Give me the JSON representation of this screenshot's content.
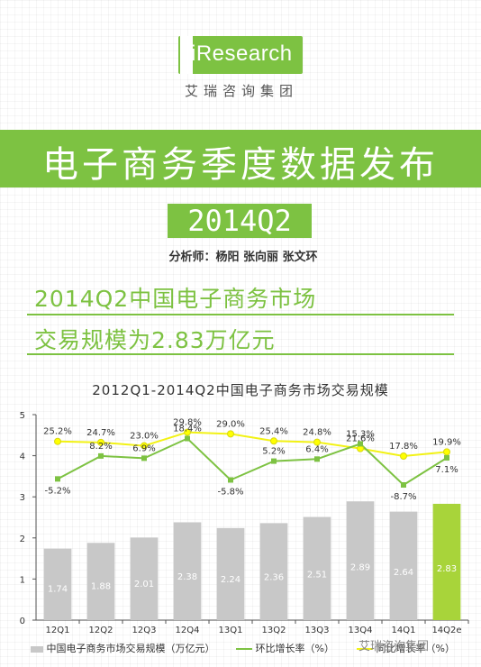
{
  "brand": {
    "logo": "iResearch",
    "sub": "艾瑞咨询集团"
  },
  "banner_title": "电子商务季度数据发布",
  "period": "2014Q2",
  "analysts": "分析师：杨阳 张向丽 张文环",
  "headline": {
    "line1": "2014Q2中国电子商务市场",
    "line2": "交易规模为2.83万亿元"
  },
  "watermark": "艾瑞咨询集团",
  "colors": {
    "accent": "#7dc242",
    "bar": "#c8c8c8",
    "bar_highlight": "#a8d43a",
    "yoy_line": "#f2f215",
    "yoy_marker": "#ffff00",
    "qoq_line": "#7dc242"
  },
  "chart_data": {
    "type": "bar",
    "title": "2012Q1-2014Q2中国电子商务市场交易规模",
    "categories": [
      "12Q1",
      "12Q2",
      "12Q3",
      "12Q4",
      "13Q1",
      "13Q2",
      "13Q3",
      "13Q4",
      "14Q1",
      "14Q2e"
    ],
    "ylim": [
      0,
      5
    ],
    "yticks": [
      "0",
      "1",
      "2",
      "3",
      "4",
      "5"
    ],
    "series": [
      {
        "name": "中国电子商务市场交易规模（万亿元）",
        "type": "bar",
        "values": [
          1.74,
          1.88,
          2.01,
          2.38,
          2.24,
          2.36,
          2.51,
          2.89,
          2.64,
          2.83
        ],
        "labels": [
          "1.74",
          "1.88",
          "2.01",
          "2.38",
          "2.24",
          "2.36",
          "2.51",
          "2.89",
          "2.64",
          "2.83"
        ]
      },
      {
        "name": "环比增长率（%）",
        "type": "line",
        "values": [
          -5.2,
          8.2,
          6.9,
          18.4,
          -5.8,
          5.2,
          6.4,
          15.3,
          -8.7,
          7.1
        ],
        "labels": [
          "-5.2%",
          "8.2%",
          "6.9%",
          "18.4%",
          "-5.8%",
          "5.2%",
          "6.4%",
          "15.3%",
          "-8.7%",
          "7.1%"
        ]
      },
      {
        "name": "同比增长率（%）",
        "type": "line",
        "values": [
          25.2,
          24.7,
          23.0,
          29.8,
          29.0,
          25.4,
          24.8,
          21.6,
          17.8,
          19.9
        ],
        "labels": [
          "25.2%",
          "24.7%",
          "23.0%",
          "29.8%",
          "29.0%",
          "25.4%",
          "24.8%",
          "21.6%",
          "17.8%",
          "19.9%"
        ]
      }
    ],
    "highlight_index": 9,
    "grid": false,
    "legend_position": "bottom"
  }
}
